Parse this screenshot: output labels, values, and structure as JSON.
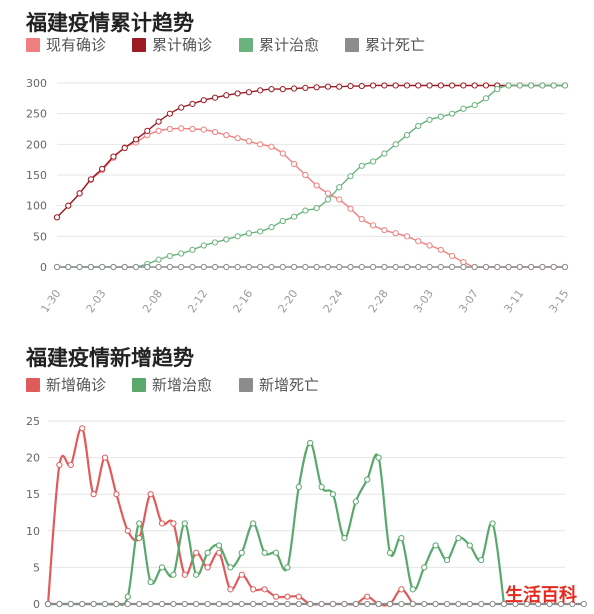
{
  "chart_data": [
    {
      "type": "line",
      "title": "福建疫情累计趋势",
      "xlabel": "",
      "ylabel": "",
      "ylim": [
        0,
        300
      ],
      "yticks": [
        0,
        50,
        100,
        150,
        200,
        250,
        300
      ],
      "grid": true,
      "legend_position": "top",
      "x": [
        "1-30",
        "1-31",
        "2-01",
        "2-02",
        "2-03",
        "2-04",
        "2-05",
        "2-06",
        "2-07",
        "2-08",
        "2-09",
        "2-10",
        "2-11",
        "2-12",
        "2-13",
        "2-14",
        "2-15",
        "2-16",
        "2-17",
        "2-18",
        "2-19",
        "2-20",
        "2-21",
        "2-22",
        "2-23",
        "2-24",
        "2-25",
        "2-26",
        "2-27",
        "2-28",
        "2-29",
        "3-01",
        "3-02",
        "3-03",
        "3-04",
        "3-05",
        "3-06",
        "3-07",
        "3-08",
        "3-09",
        "3-10",
        "3-11",
        "3-12",
        "3-13",
        "3-14",
        "3-15"
      ],
      "x_tick_labels": [
        "1-30",
        "2-03",
        "2-08",
        "2-12",
        "2-16",
        "2-20",
        "2-24",
        "2-28",
        "3-03",
        "3-07",
        "3-11",
        "3-15"
      ],
      "series": [
        {
          "name": "现有确诊",
          "color": "#f08080",
          "values": [
            81,
            100,
            120,
            142,
            158,
            178,
            195,
            203,
            215,
            222,
            225,
            226,
            225,
            224,
            220,
            215,
            210,
            205,
            200,
            196,
            185,
            168,
            150,
            133,
            120,
            110,
            95,
            78,
            68,
            60,
            55,
            50,
            42,
            35,
            28,
            18,
            8,
            0,
            0,
            0,
            0,
            0,
            0,
            0,
            0,
            0
          ]
        },
        {
          "name": "累计确诊",
          "color": "#9b1b23",
          "values": [
            81,
            100,
            120,
            143,
            160,
            180,
            194,
            208,
            222,
            237,
            250,
            260,
            266,
            272,
            276,
            280,
            283,
            285,
            288,
            290,
            290,
            291,
            292,
            293,
            294,
            294,
            295,
            295,
            296,
            296,
            296,
            296,
            296,
            296,
            296,
            296,
            296,
            296,
            296,
            296,
            296,
            296,
            296,
            296,
            296,
            296
          ]
        },
        {
          "name": "累计治愈",
          "color": "#6ab37e",
          "values": [
            0,
            0,
            0,
            0,
            0,
            0,
            0,
            0,
            5,
            12,
            18,
            22,
            28,
            35,
            40,
            45,
            50,
            55,
            58,
            65,
            75,
            82,
            92,
            96,
            110,
            130,
            148,
            165,
            172,
            185,
            200,
            215,
            230,
            240,
            245,
            250,
            258,
            264,
            275,
            290,
            296,
            296,
            296,
            296,
            296,
            296
          ]
        },
        {
          "name": "累计死亡",
          "color": "#8c8c8c",
          "values": [
            0,
            0,
            0,
            0,
            0,
            0,
            0,
            0,
            0,
            0,
            0,
            0,
            0,
            0,
            0,
            0,
            0,
            0,
            0,
            0,
            0,
            0,
            0,
            0,
            0,
            0,
            0,
            0,
            0,
            0,
            0,
            0,
            0,
            0,
            0,
            0,
            0,
            0,
            0,
            0,
            0,
            0,
            0,
            0,
            0,
            0
          ]
        }
      ]
    },
    {
      "type": "line",
      "title": "福建疫情新增趋势",
      "xlabel": "",
      "ylabel": "",
      "ylim": [
        0,
        25
      ],
      "yticks": [
        0,
        5,
        10,
        15,
        20,
        25
      ],
      "grid": true,
      "legend_position": "top",
      "series": [
        {
          "name": "新增确诊",
          "color": "#e05c5c",
          "values": [
            0,
            19,
            19,
            24,
            15,
            20,
            15,
            10,
            9,
            15,
            11,
            11,
            4,
            7,
            5,
            7,
            2,
            4,
            2,
            2,
            1,
            1,
            1,
            0,
            0,
            0,
            0,
            0,
            1,
            0,
            0,
            2,
            0
          ]
        },
        {
          "name": "新增治愈",
          "color": "#5aa86c",
          "values": [
            0,
            0,
            0,
            0,
            0,
            0,
            0,
            1,
            11,
            3,
            5,
            4,
            11,
            4,
            7,
            8,
            5,
            7,
            11,
            7,
            7,
            5,
            16,
            22,
            16,
            15,
            9,
            14,
            17,
            20,
            7,
            9,
            2,
            5,
            8,
            6,
            9,
            8,
            6,
            11,
            0
          ]
        },
        {
          "name": "新增死亡",
          "color": "#8c8c8c",
          "values": [
            0,
            0,
            0,
            0,
            0,
            0,
            0,
            0,
            0,
            0,
            0,
            0,
            0,
            0,
            0,
            0,
            0,
            0,
            0,
            0,
            0,
            0,
            0,
            0,
            0,
            0,
            0,
            0,
            0,
            0,
            0,
            0,
            0,
            0,
            0,
            0,
            0,
            0,
            0,
            0,
            0,
            0,
            0,
            0,
            0,
            0,
            0,
            0
          ]
        }
      ]
    }
  ],
  "watermark": "生活百科"
}
